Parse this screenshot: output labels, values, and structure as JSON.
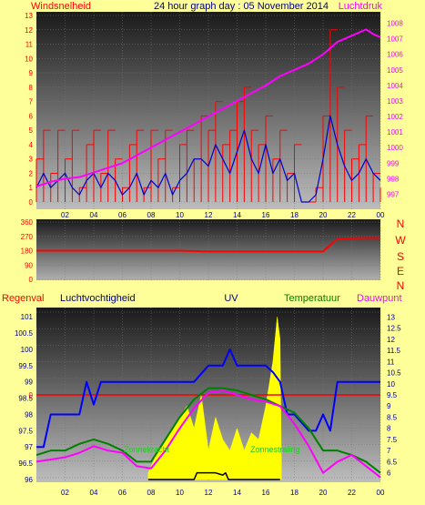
{
  "header": {
    "left_label": "Windsnelheid",
    "title": "24 hour graph day : 05 November 2014",
    "right_label": "Luchtdruk"
  },
  "colors": {
    "background": "#ffff99",
    "wind": "#ff0000",
    "wind_avg": "#0000cc",
    "pressure": "#ff00ff",
    "direction": "#ff0000",
    "rain": "#ff0000",
    "humidity": "#0000ff",
    "uv": "#000000",
    "temperature": "#008000",
    "dewpoint": "#ff00ff",
    "solar": "#ffff00"
  },
  "legend2": {
    "regenval": "Regenval",
    "luchtvochtigheid": "Luchtvochtigheid",
    "uv": "UV",
    "temperatuur": "Temperatuur",
    "dauwpunt": "Dauwpunt",
    "zonnekracht": "Zonnekracht",
    "zonnestraling": "Zonnestraling"
  },
  "compass": [
    "N",
    "W",
    "S",
    "E",
    "N"
  ],
  "chart_data": [
    {
      "type": "line",
      "x_ticks": [
        "02",
        "04",
        "06",
        "08",
        "10",
        "12",
        "14",
        "16",
        "18",
        "20",
        "22",
        "00"
      ],
      "y_left_ticks": [
        "0",
        "1",
        "2",
        "3",
        "4",
        "5",
        "6",
        "7",
        "8",
        "9",
        "10",
        "11",
        "12",
        "13"
      ],
      "y_right_ticks": [
        "997",
        "998",
        "999",
        "1000",
        "1001",
        "1002",
        "1003",
        "1004",
        "1005",
        "1006",
        "1007",
        "1008"
      ],
      "ylim_left": [
        0,
        13
      ],
      "ylim_right": [
        996.5,
        1008.5
      ],
      "series": [
        {
          "key": "wind",
          "x": [
            0,
            0.5,
            1,
            1.5,
            2,
            2.5,
            3,
            3.5,
            4,
            4.5,
            5,
            5.5,
            6,
            6.5,
            7,
            7.5,
            8,
            8.5,
            9,
            9.5,
            10,
            10.5,
            11,
            11.5,
            12,
            12.5,
            13,
            13.5,
            14,
            14.5,
            15,
            15.5,
            16,
            16.5,
            17,
            17.5,
            18,
            18.5,
            19,
            19.5,
            20,
            20.5,
            21,
            21.5,
            22,
            22.5,
            23,
            23.5,
            24
          ],
          "values": [
            3,
            5,
            2,
            5,
            3,
            5,
            1,
            4,
            5,
            2,
            5,
            3,
            1,
            4,
            5,
            1,
            5,
            3,
            5,
            1,
            4,
            5,
            3,
            6,
            5,
            7,
            4,
            5,
            7,
            8,
            5,
            4,
            6,
            3,
            5,
            2,
            4,
            0,
            0,
            1,
            6,
            12,
            8,
            5,
            3,
            4,
            6,
            2,
            1
          ]
        },
        {
          "key": "wind_avg",
          "x": [
            0,
            0.5,
            1,
            1.5,
            2,
            2.5,
            3,
            3.5,
            4,
            4.5,
            5,
            5.5,
            6,
            6.5,
            7,
            7.5,
            8,
            8.5,
            9,
            9.5,
            10,
            10.5,
            11,
            11.5,
            12,
            12.5,
            13,
            13.5,
            14,
            14.5,
            15,
            15.5,
            16,
            16.5,
            17,
            17.5,
            18,
            18.5,
            19,
            19.5,
            20,
            20.5,
            21,
            21.5,
            22,
            22.5,
            23,
            23.5,
            24
          ],
          "values": [
            1,
            2,
            1,
            1.5,
            2,
            1,
            0.5,
            1.5,
            2,
            1,
            2,
            1.5,
            0.5,
            1,
            2,
            0.5,
            1.5,
            1,
            2,
            0.5,
            1.5,
            2,
            3,
            3,
            2.5,
            4,
            3,
            2,
            3.5,
            5,
            3,
            2,
            4,
            2,
            3,
            1.5,
            2,
            0,
            0,
            0.5,
            3,
            6,
            4,
            2.5,
            1.5,
            2,
            3,
            2,
            1.5
          ]
        },
        {
          "key": "pressure",
          "x": [
            0,
            1,
            2,
            3,
            4,
            5,
            6,
            7,
            8,
            9,
            10,
            11,
            12,
            13,
            14,
            15,
            16,
            17,
            18,
            19,
            20,
            21,
            22,
            23,
            23.5,
            24
          ],
          "values": [
            997.5,
            997.8,
            998,
            998.1,
            998.4,
            998.7,
            999,
            999.5,
            1000,
            1000.5,
            1001,
            1001.5,
            1002,
            1002.5,
            1003,
            1003.5,
            1004,
            1004.6,
            1005,
            1005.4,
            1006,
            1006.8,
            1007.2,
            1007.6,
            1007.3,
            1007.1
          ]
        }
      ]
    },
    {
      "type": "line",
      "x_ticks": [
        "02",
        "04",
        "06",
        "08",
        "10",
        "12",
        "14",
        "16",
        "18",
        "20",
        "22",
        "00"
      ],
      "y_ticks": [
        "0",
        "90",
        "180",
        "270",
        "360"
      ],
      "ylim": [
        0,
        360
      ],
      "series": [
        {
          "key": "direction",
          "x": [
            0,
            8,
            10,
            12,
            14,
            16,
            18,
            19.5,
            20,
            21,
            22,
            23,
            24
          ],
          "values": [
            180,
            180,
            180,
            175,
            175,
            175,
            175,
            175,
            175,
            255,
            258,
            260,
            260
          ]
        }
      ]
    },
    {
      "type": "line",
      "x_ticks": [
        "02",
        "04",
        "06",
        "08",
        "10",
        "12",
        "14",
        "16",
        "18",
        "20",
        "22",
        "00"
      ],
      "y_left_ticks": [
        "96",
        "96.5",
        "97",
        "97.5",
        "98",
        "98.5",
        "99",
        "99.5",
        "100",
        "100.5",
        "101"
      ],
      "y_right_ticks": [
        "6",
        "6.5",
        "7",
        "7.5",
        "8",
        "8.5",
        "9",
        "9.5",
        "10",
        "10.5",
        "11",
        "11.5",
        "12",
        "12.5",
        "13"
      ],
      "ylim_left": [
        96,
        101.2
      ],
      "ylim_right": [
        5.7,
        13.3
      ],
      "rain_marker": "0",
      "series": [
        {
          "key": "humidity",
          "x": [
            0,
            0.5,
            1,
            3,
            3.5,
            4,
            4.5,
            5,
            10,
            11,
            12,
            13,
            13.5,
            14,
            15,
            16,
            16.5,
            17,
            17.5,
            18,
            19,
            19.5,
            20,
            20.5,
            21,
            22,
            24
          ],
          "values": [
            97,
            97,
            98,
            98,
            99,
            98.3,
            99,
            99,
            99,
            99,
            99.5,
            99.5,
            100,
            99.5,
            99.5,
            99.5,
            99.3,
            99,
            98,
            98,
            97.5,
            97.5,
            98,
            97.5,
            99,
            99,
            99
          ]
        },
        {
          "key": "temperature",
          "x": [
            0,
            1,
            2,
            3,
            4,
            5,
            6,
            7,
            8,
            9,
            10,
            11,
            12,
            13,
            14,
            15,
            16,
            17,
            18,
            19,
            20,
            21,
            22,
            23,
            24
          ],
          "values": [
            6.8,
            7,
            7,
            7.3,
            7.5,
            7.3,
            7,
            6.5,
            6.5,
            7.5,
            8.5,
            9.3,
            9.8,
            9.8,
            9.7,
            9.5,
            9.3,
            9,
            8.7,
            8,
            7,
            7,
            6.8,
            6.5,
            6
          ]
        },
        {
          "key": "dewpoint",
          "x": [
            0,
            1,
            2,
            3,
            4,
            5,
            6,
            7,
            8,
            9,
            10,
            11,
            12,
            13,
            14,
            15,
            16,
            17,
            18,
            19,
            20,
            21,
            22,
            23,
            24
          ],
          "values": [
            6.5,
            6.6,
            6.7,
            6.9,
            7.2,
            7,
            6.9,
            6.3,
            6.2,
            7,
            8,
            8.9,
            9.6,
            9.7,
            9.5,
            9.3,
            9.2,
            9,
            8.2,
            7.2,
            6,
            6.5,
            6.8,
            6.3,
            5.8
          ]
        },
        {
          "key": "uv",
          "x": [
            7.8,
            11,
            11.2,
            12.5,
            13,
            13.2,
            13.4,
            14.5,
            17
          ],
          "values": [
            5.7,
            5.7,
            6,
            6,
            5.9,
            6,
            5.7,
            5.7,
            5.7
          ]
        },
        {
          "key": "solar",
          "x": [
            7.8,
            8.5,
            9,
            9.5,
            10,
            10.5,
            11,
            11.5,
            12,
            12.5,
            13,
            13.5,
            14,
            14.5,
            15,
            15.5,
            16,
            16.5,
            16.8,
            17,
            17.1
          ],
          "values": [
            6,
            7,
            7.5,
            8,
            8.5,
            9,
            8,
            9.5,
            7,
            8.5,
            7.5,
            7,
            8,
            7,
            7.8,
            7.5,
            9,
            11,
            13,
            12,
            6
          ]
        }
      ]
    }
  ]
}
